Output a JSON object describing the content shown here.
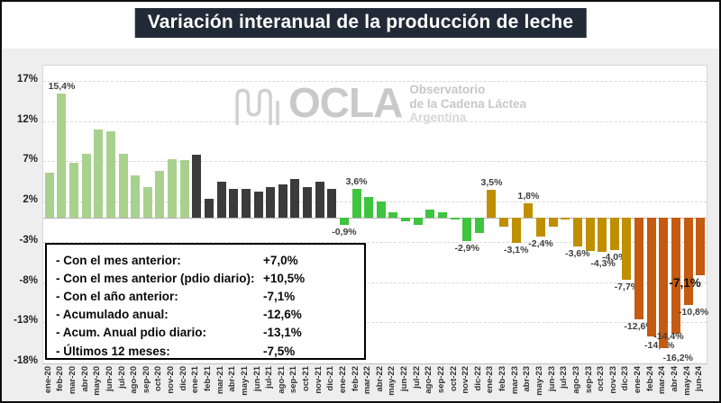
{
  "title": {
    "text": "Variación interanual de la producción de leche"
  },
  "watermark": {
    "icon": "wave-squiggle-icon",
    "brand": "OCLA",
    "subtitle_lines": [
      "Observatorio",
      "de la Cadena Láctea",
      "Argentina"
    ]
  },
  "stats": {
    "rows": [
      {
        "label": "- Con el mes anterior:",
        "value": "+7,0%"
      },
      {
        "label": "- Con el mes anterior (pdio diario):",
        "value": "+10,5%"
      },
      {
        "label": "- Con el año anterior:",
        "value": "-7,1%"
      },
      {
        "label": "- Acumulado anual:",
        "value": "-12,6%"
      },
      {
        "label": "- Acum. Anual pdio diario:",
        "value": "-13,1%"
      },
      {
        "label": "- Últimos 12 meses:",
        "value": "-7,5%"
      }
    ]
  },
  "chart_data": {
    "type": "bar",
    "title": "Variación interanual de la producción de leche",
    "xlabel": "",
    "ylabel": "",
    "grid": "horizontal-dashed",
    "ylim": [
      -18.1,
      18.9
    ],
    "y_tick_values": [
      17,
      12,
      7,
      2,
      -3,
      -8,
      -13,
      -18
    ],
    "y_tick_labels": [
      "17%",
      "12%",
      "7%",
      "2%",
      "-3%",
      "-8%",
      "-13%",
      "-18%"
    ],
    "categories": [
      "ene-20",
      "feb-20",
      "mar-20",
      "abr-20",
      "may-20",
      "jun-20",
      "jul-20",
      "ago-20",
      "sep-20",
      "oct-20",
      "nov-20",
      "dic-20",
      "ene-21",
      "feb-21",
      "mar-21",
      "abr-21",
      "may-21",
      "jun-21",
      "jul-21",
      "ago-21",
      "sep-21",
      "oct-21",
      "nov-21",
      "dic-21",
      "ene-22",
      "feb-22",
      "mar-22",
      "abr-22",
      "may-22",
      "jun-22",
      "jul-22",
      "ago-22",
      "sep-22",
      "oct-22",
      "nov-22",
      "dic-22",
      "ene-23",
      "feb-23",
      "mar-23",
      "abr-23",
      "may-23",
      "jun-23",
      "jul-23",
      "ago-23",
      "sep-23",
      "oct-23",
      "nov-23",
      "dic-23",
      "ene-24",
      "feb-24",
      "mar-24",
      "abr-24",
      "may-24",
      "jun-24"
    ],
    "values": [
      5.6,
      15.4,
      6.8,
      7.9,
      11.0,
      10.7,
      7.9,
      5.2,
      3.8,
      5.8,
      7.3,
      7.2,
      7.8,
      2.3,
      4.5,
      3.6,
      3.6,
      3.2,
      3.8,
      4.1,
      4.8,
      3.8,
      4.5,
      3.6,
      -0.9,
      3.6,
      2.6,
      2.0,
      0.7,
      -0.5,
      -0.9,
      1.0,
      0.7,
      -0.2,
      -2.9,
      -1.9,
      3.5,
      -1.1,
      -3.1,
      1.8,
      -2.4,
      -1.1,
      -0.2,
      -3.6,
      -4.1,
      -4.3,
      -4.0,
      -7.7,
      -12.6,
      -14.8,
      -16.2,
      -14.4,
      -10.8,
      -7.1
    ],
    "point_labels": {
      "feb-20": "15,4%",
      "ene-22": "-0,9%",
      "feb-22": "3,6%",
      "nov-22": "-2,9%",
      "ene-23": "3,5%",
      "mar-23": "-3,1%",
      "abr-23": "1,8%",
      "may-23": "-2,4%",
      "ago-23": "-3,6%",
      "oct-23": "-4,3%",
      "nov-23": "-4,0%",
      "dic-23": "-7,7%",
      "ene-24": "-12,6%",
      "feb-24": "-14,8%",
      "mar-24": "-16,2%",
      "abr-24": "-14,4%",
      "may-24": "-10,8%",
      "jun-24": "-7,1%"
    },
    "highlight_label": "jun-24",
    "series_colors_by_year": {
      "2020": "#a9d18e",
      "2021": "#3b3b3b",
      "2022": "#3ec43e",
      "2023": "#bf8f00",
      "2024": "#c55a11"
    },
    "colors": {
      "background_outer": "#eeeeee",
      "plot_background": "#ffffff",
      "title_background": "#212b37",
      "title_text": "#ffffff",
      "gridline": "#d9d9d9",
      "watermark": "#c9c9c9"
    }
  }
}
